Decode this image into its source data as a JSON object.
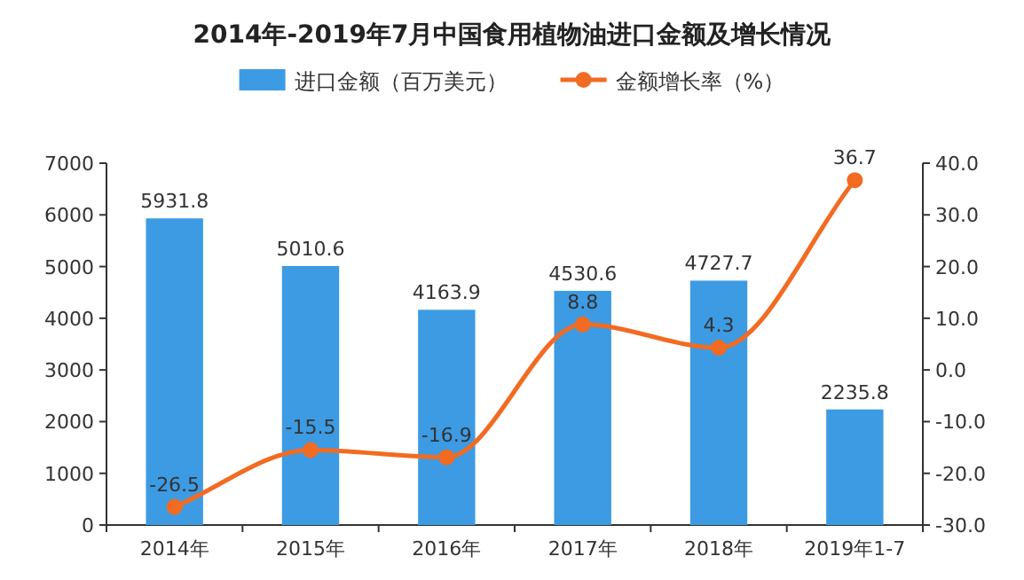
{
  "chart_data": {
    "type": "bar",
    "title": "2014年-2019年7月中国食用植物油进口金额及增长情况",
    "categories": [
      "2014年",
      "2015年",
      "2016年",
      "2017年",
      "2018年",
      "2019年1-7"
    ],
    "series": [
      {
        "name": "进口金额（百万美元）",
        "color": "#3d9be3",
        "values": [
          5931.8,
          5010.6,
          4163.9,
          4530.6,
          4727.7,
          2235.8
        ]
      },
      {
        "name": "金额增长率（%）",
        "type": "line",
        "axis": "y2",
        "color": "#f26b22",
        "marker": "circle",
        "values": [
          -26.5,
          -15.5,
          -16.9,
          8.8,
          4.3,
          36.7
        ]
      }
    ],
    "ylim": [
      0,
      7000
    ],
    "yticks": [
      0,
      1000,
      2000,
      3000,
      4000,
      5000,
      6000,
      7000
    ],
    "y2lim": [
      -30,
      40
    ],
    "y2ticks": [
      {
        "value": -30,
        "label": "-30.0"
      },
      {
        "value": -20,
        "label": "-20.0"
      },
      {
        "value": -10,
        "label": "-10.0"
      },
      {
        "value": 0,
        "label": "0.0"
      },
      {
        "value": 10,
        "label": "10.0"
      },
      {
        "value": 20,
        "label": "20.0"
      },
      {
        "value": 30,
        "label": "30.0"
      },
      {
        "value": 40,
        "label": "40.0"
      }
    ],
    "data_labels": true,
    "legend": "top",
    "grid": false
  }
}
